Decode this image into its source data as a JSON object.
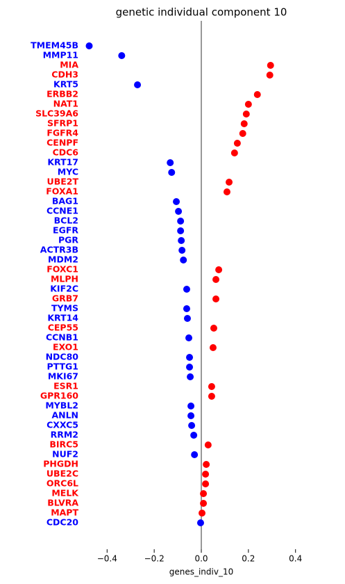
{
  "chart_data": {
    "type": "dot",
    "title": "genetic individual component 10",
    "x_label": "genes_indiv_10",
    "categories": [
      "TMEM45B",
      "MMP11",
      "MIA",
      "CDH3",
      "KRT5",
      "ERBB2",
      "NAT1",
      "SLC39A6",
      "SFRP1",
      "FGFR4",
      "CENPF",
      "CDC6",
      "KRT17",
      "MYC",
      "UBE2T",
      "FOXA1",
      "BAG1",
      "CCNE1",
      "BCL2",
      "EGFR",
      "PGR",
      "ACTR3B",
      "MDM2",
      "FOXC1",
      "MLPH",
      "KIF2C",
      "GRB7",
      "TYMS",
      "KRT14",
      "CEP55",
      "CCNB1",
      "EXO1",
      "NDC80",
      "PTTG1",
      "MKI67",
      "ESR1",
      "GPR160",
      "MYBL2",
      "ANLN",
      "CXXC5",
      "RRM2",
      "BIRC5",
      "NUF2",
      "PHGDH",
      "UBE2C",
      "ORC6L",
      "MELK",
      "BLVRA",
      "MAPT",
      "CDC20"
    ],
    "values": [
      -0.476,
      -0.338,
      0.294,
      0.291,
      -0.271,
      0.238,
      0.2,
      0.191,
      0.182,
      0.176,
      0.153,
      0.141,
      -0.132,
      -0.126,
      0.118,
      0.109,
      -0.106,
      -0.097,
      -0.088,
      -0.088,
      -0.085,
      -0.082,
      -0.076,
      0.074,
      0.062,
      -0.062,
      0.062,
      -0.062,
      -0.059,
      0.053,
      -0.053,
      0.05,
      -0.05,
      -0.05,
      -0.047,
      0.044,
      0.044,
      -0.044,
      -0.044,
      -0.041,
      -0.032,
      0.029,
      -0.029,
      0.021,
      0.018,
      0.018,
      0.009,
      0.009,
      0.003,
      -0.003
    ],
    "negative_color": "blue",
    "positive_color": "red",
    "xlim": [
      -0.56,
      0.56
    ],
    "xticks": [
      {
        "value": -0.4,
        "label": "−0.4"
      },
      {
        "value": -0.2,
        "label": "−0.2"
      },
      {
        "value": 0,
        "label": "0.0"
      },
      0.2,
      0.4
    ],
    "zero_line": true
  }
}
